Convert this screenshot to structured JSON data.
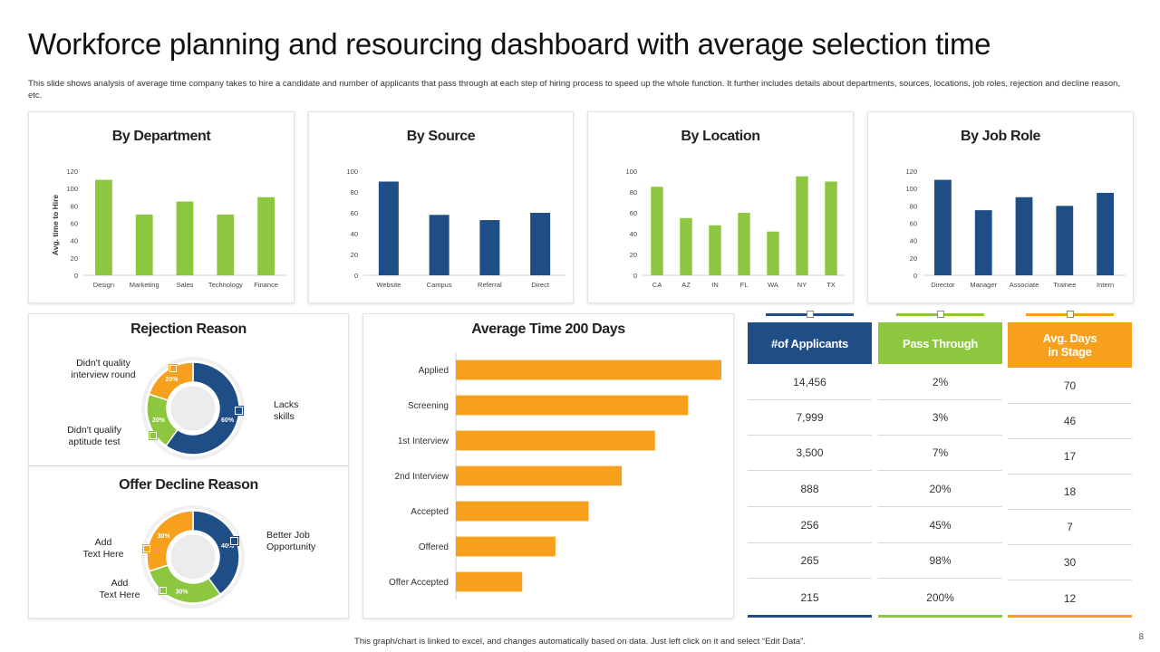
{
  "page": {
    "title": "Workforce planning and resourcing dashboard with average selection time",
    "subtitle": "This slide shows analysis of average time company takes to hire a candidate and number of applicants that pass through at each step of hiring process to speed up the whole function. It further includes details about departments, sources, locations, job roles, rejection and decline reason, etc.",
    "footer": "This graph/chart is linked to excel, and changes automatically based on data. Just left click on it and select “Edit Data”.",
    "page_number": "8"
  },
  "colors": {
    "green": "#8DC63F",
    "blue": "#1F4E87",
    "orange": "#F7A01D",
    "grey": "#e6e6e6"
  },
  "chart_data": [
    {
      "id": "dept",
      "type": "bar",
      "title": "By Department",
      "ylabel": "Avg. time to Hire",
      "categories": [
        "Design",
        "Marketing",
        "Sales",
        "Technology",
        "Finance"
      ],
      "values": [
        110,
        70,
        85,
        70,
        90
      ],
      "ylim": [
        0,
        120
      ],
      "yticks": [
        "0",
        "20",
        "40",
        "60",
        "80",
        "100",
        "120"
      ],
      "color": "green"
    },
    {
      "id": "source",
      "type": "bar",
      "title": "By Source",
      "ylabel": "",
      "categories": [
        "Website",
        "Campus",
        "Referral",
        "Direct"
      ],
      "values": [
        90,
        58,
        53,
        60
      ],
      "ylim": [
        0,
        100
      ],
      "yticks": [
        "0",
        "20",
        "40",
        "60",
        "80",
        "100"
      ],
      "color": "blue"
    },
    {
      "id": "location",
      "type": "bar",
      "title": "By Location",
      "ylabel": "",
      "categories": [
        "CA",
        "AZ",
        "IN",
        "FL",
        "WA",
        "NY",
        "TX"
      ],
      "values": [
        85,
        55,
        48,
        60,
        42,
        95,
        90
      ],
      "ylim": [
        0,
        100
      ],
      "yticks": [
        "0",
        "20",
        "40",
        "60",
        "80",
        "100"
      ],
      "color": "green"
    },
    {
      "id": "jobrole",
      "type": "bar",
      "title": "By Job Role",
      "ylabel": "",
      "categories": [
        "Director",
        "Manager",
        "Associate",
        "Trainee",
        "Intern"
      ],
      "values": [
        110,
        75,
        90,
        80,
        95
      ],
      "ylim": [
        0,
        120
      ],
      "yticks": [
        "0",
        "20",
        "40",
        "60",
        "80",
        "100",
        "120"
      ],
      "color": "blue"
    },
    {
      "id": "rejection",
      "type": "pie",
      "title": "Rejection Reason",
      "slices": [
        {
          "label": "Lacks skills",
          "value": 60,
          "text": "60%",
          "color": "blue"
        },
        {
          "label": "Didn't qualify aptitude test",
          "value": 20,
          "text": "20%",
          "color": "green"
        },
        {
          "label": "Didn't quality interview round",
          "value": 20,
          "text": "20%",
          "color": "orange"
        }
      ]
    },
    {
      "id": "decline",
      "type": "pie",
      "title": "Offer Decline Reason",
      "slices": [
        {
          "label": "Better Job Opportunity",
          "value": 40,
          "text": "40%",
          "color": "blue"
        },
        {
          "label": "Add Text Here",
          "value": 30,
          "text": "30%",
          "color": "green"
        },
        {
          "label": "Add Text Here",
          "value": 30,
          "text": "30%",
          "color": "orange"
        }
      ]
    },
    {
      "id": "stages",
      "type": "bar",
      "orientation": "horizontal",
      "title": "Average Time 200 Days",
      "categories": [
        "Applied",
        "Screening",
        "1st Interview",
        "2nd Interview",
        "Accepted",
        "Offered",
        "Offer Accepted"
      ],
      "values": [
        200,
        175,
        150,
        125,
        100,
        75,
        50
      ],
      "xlim": [
        0,
        200
      ],
      "color": "orange"
    }
  ],
  "donut_labels": {
    "rejection": {
      "interview": "Didn't quality\ninterview round",
      "aptitude": "Didn't qualify\naptitude test",
      "skills": "Lacks\nskills"
    },
    "decline": {
      "better": "Better Job\nOpportunity",
      "add1": "Add\nText Here",
      "add2": "Add\nText Here"
    }
  },
  "table": {
    "columns": [
      {
        "header": "#of Applicants",
        "color": "blue",
        "values": [
          "14,456",
          "7,999",
          "3,500",
          "888",
          "256",
          "265",
          "215"
        ]
      },
      {
        "header": "Pass Through",
        "color": "green",
        "values": [
          "2%",
          "3%",
          "7%",
          "20%",
          "45%",
          "98%",
          "200%"
        ]
      },
      {
        "header": "Avg. Days\nin Stage",
        "color": "orange",
        "values": [
          "70",
          "46",
          "17",
          "18",
          "7",
          "30",
          "12"
        ]
      }
    ]
  }
}
